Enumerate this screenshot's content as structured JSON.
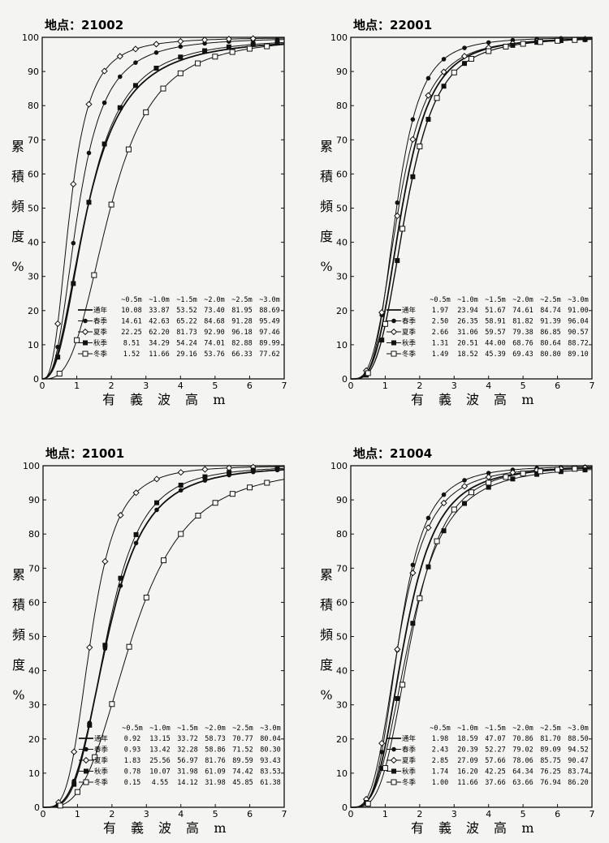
{
  "common": {
    "ylabel_chars": [
      "累",
      "積",
      "頻",
      "度",
      "%"
    ],
    "xlabel_chars": [
      "有",
      "義",
      "波",
      "高",
      "m"
    ],
    "column_headers": [
      "~0.5m",
      "~1.0m",
      "~1.5m",
      "~2.0m",
      "~2.5m",
      "~3.0m"
    ],
    "series_names": [
      "通年",
      "春季",
      "夏季",
      "秋季",
      "冬季"
    ],
    "x_ticks": [
      "0",
      "1",
      "2",
      "3",
      "4",
      "5",
      "6",
      "7"
    ],
    "y_ticks": [
      "0",
      "10",
      "20",
      "30",
      "40",
      "50",
      "60",
      "70",
      "80",
      "90",
      "100"
    ]
  },
  "chart_data": [
    {
      "type": "line",
      "title": "地点：21002",
      "xlabel": "有義波高 m",
      "ylabel": "累積頻度 %",
      "xlim": [
        0,
        7
      ],
      "ylim": [
        0,
        100
      ],
      "x": [
        0.5,
        1.0,
        1.5,
        2.0,
        2.5,
        3.0
      ],
      "series": [
        {
          "name": "通年",
          "marker": "none",
          "values": [
            "10.08",
            "33.87",
            "53.52",
            "73.40",
            "81.95",
            "88.69"
          ]
        },
        {
          "name": "春季",
          "marker": "filled-circle",
          "values": [
            "14.61",
            "42.63",
            "65.22",
            "84.68",
            "91.28",
            "95.49"
          ]
        },
        {
          "name": "夏季",
          "marker": "open-diamond",
          "values": [
            "22.25",
            "62.20",
            "81.73",
            "92.90",
            "96.18",
            "97.46"
          ]
        },
        {
          "name": "秋季",
          "marker": "filled-square",
          "values": [
            "8.51",
            "34.29",
            "54.24",
            "74.01",
            "82.88",
            "89.99"
          ]
        },
        {
          "name": "冬季",
          "marker": "open-square",
          "values": [
            "1.52",
            "11.66",
            "29.16",
            "53.76",
            "66.33",
            "77.62"
          ]
        }
      ]
    },
    {
      "type": "line",
      "title": "地点：22001",
      "xlabel": "有義波高 m",
      "ylabel": "累積頻度 %",
      "xlim": [
        0,
        7
      ],
      "ylim": [
        0,
        100
      ],
      "x": [
        0.5,
        1.0,
        1.5,
        2.0,
        2.5,
        3.0
      ],
      "series": [
        {
          "name": "通年",
          "marker": "none",
          "values": [
            "1.97",
            "23.94",
            "51.67",
            "74.61",
            "84.74",
            "91.00"
          ]
        },
        {
          "name": "春季",
          "marker": "filled-circle",
          "values": [
            "2.50",
            "26.35",
            "58.91",
            "81.82",
            "91.39",
            "96.04"
          ]
        },
        {
          "name": "夏季",
          "marker": "open-diamond",
          "values": [
            "2.66",
            "31.06",
            "59.57",
            "79.38",
            "86.85",
            "90.57"
          ]
        },
        {
          "name": "秋季",
          "marker": "filled-square",
          "values": [
            "1.31",
            "20.51",
            "44.00",
            "68.76",
            "80.64",
            "88.72"
          ]
        },
        {
          "name": "冬季",
          "marker": "open-square",
          "values": [
            "1.49",
            "18.52",
            "45.39",
            "69.43",
            "80.80",
            "89.10"
          ]
        }
      ]
    },
    {
      "type": "line",
      "title": "地点：21001",
      "xlabel": "有義波高 m",
      "ylabel": "累積頻度 %",
      "xlim": [
        0,
        7
      ],
      "ylim": [
        0,
        100
      ],
      "x": [
        0.5,
        1.0,
        1.5,
        2.0,
        2.5,
        3.0
      ],
      "series": [
        {
          "name": "通年",
          "marker": "none",
          "values": [
            "0.92",
            "13.15",
            "33.72",
            "58.73",
            "70.77",
            "80.04"
          ]
        },
        {
          "name": "春季",
          "marker": "filled-circle",
          "values": [
            "0.93",
            "13.42",
            "32.28",
            "58.86",
            "71.52",
            "80.30"
          ]
        },
        {
          "name": "夏季",
          "marker": "open-diamond",
          "values": [
            "1.83",
            "25.56",
            "56.97",
            "81.76",
            "89.59",
            "93.43"
          ]
        },
        {
          "name": "秋季",
          "marker": "filled-square",
          "values": [
            "0.78",
            "10.07",
            "31.98",
            "61.09",
            "74.42",
            "83.53"
          ]
        },
        {
          "name": "冬季",
          "marker": "open-square",
          "values": [
            "0.15",
            "4.55",
            "14.12",
            "31.98",
            "45.85",
            "61.38"
          ]
        }
      ]
    },
    {
      "type": "line",
      "title": "地点：21004",
      "xlabel": "有義波高 m",
      "ylabel": "累積頻度 %",
      "xlim": [
        0,
        7
      ],
      "ylim": [
        0,
        100
      ],
      "x": [
        0.5,
        1.0,
        1.5,
        2.0,
        2.5,
        3.0
      ],
      "series": [
        {
          "name": "通年",
          "marker": "none",
          "values": [
            "1.98",
            "18.59",
            "47.07",
            "70.86",
            "81.70",
            "88.50"
          ]
        },
        {
          "name": "春季",
          "marker": "filled-circle",
          "values": [
            "2.43",
            "20.39",
            "52.27",
            "79.02",
            "89.09",
            "94.52"
          ]
        },
        {
          "name": "夏季",
          "marker": "open-diamond",
          "values": [
            "2.85",
            "27.09",
            "57.66",
            "78.06",
            "85.75",
            "90.47"
          ]
        },
        {
          "name": "秋季",
          "marker": "filled-square",
          "values": [
            "1.74",
            "16.20",
            "42.25",
            "64.34",
            "76.25",
            "83.74"
          ]
        },
        {
          "name": "冬季",
          "marker": "open-square",
          "values": [
            "1.00",
            "11.66",
            "37.66",
            "63.66",
            "76.94",
            "86.20"
          ]
        }
      ]
    }
  ]
}
